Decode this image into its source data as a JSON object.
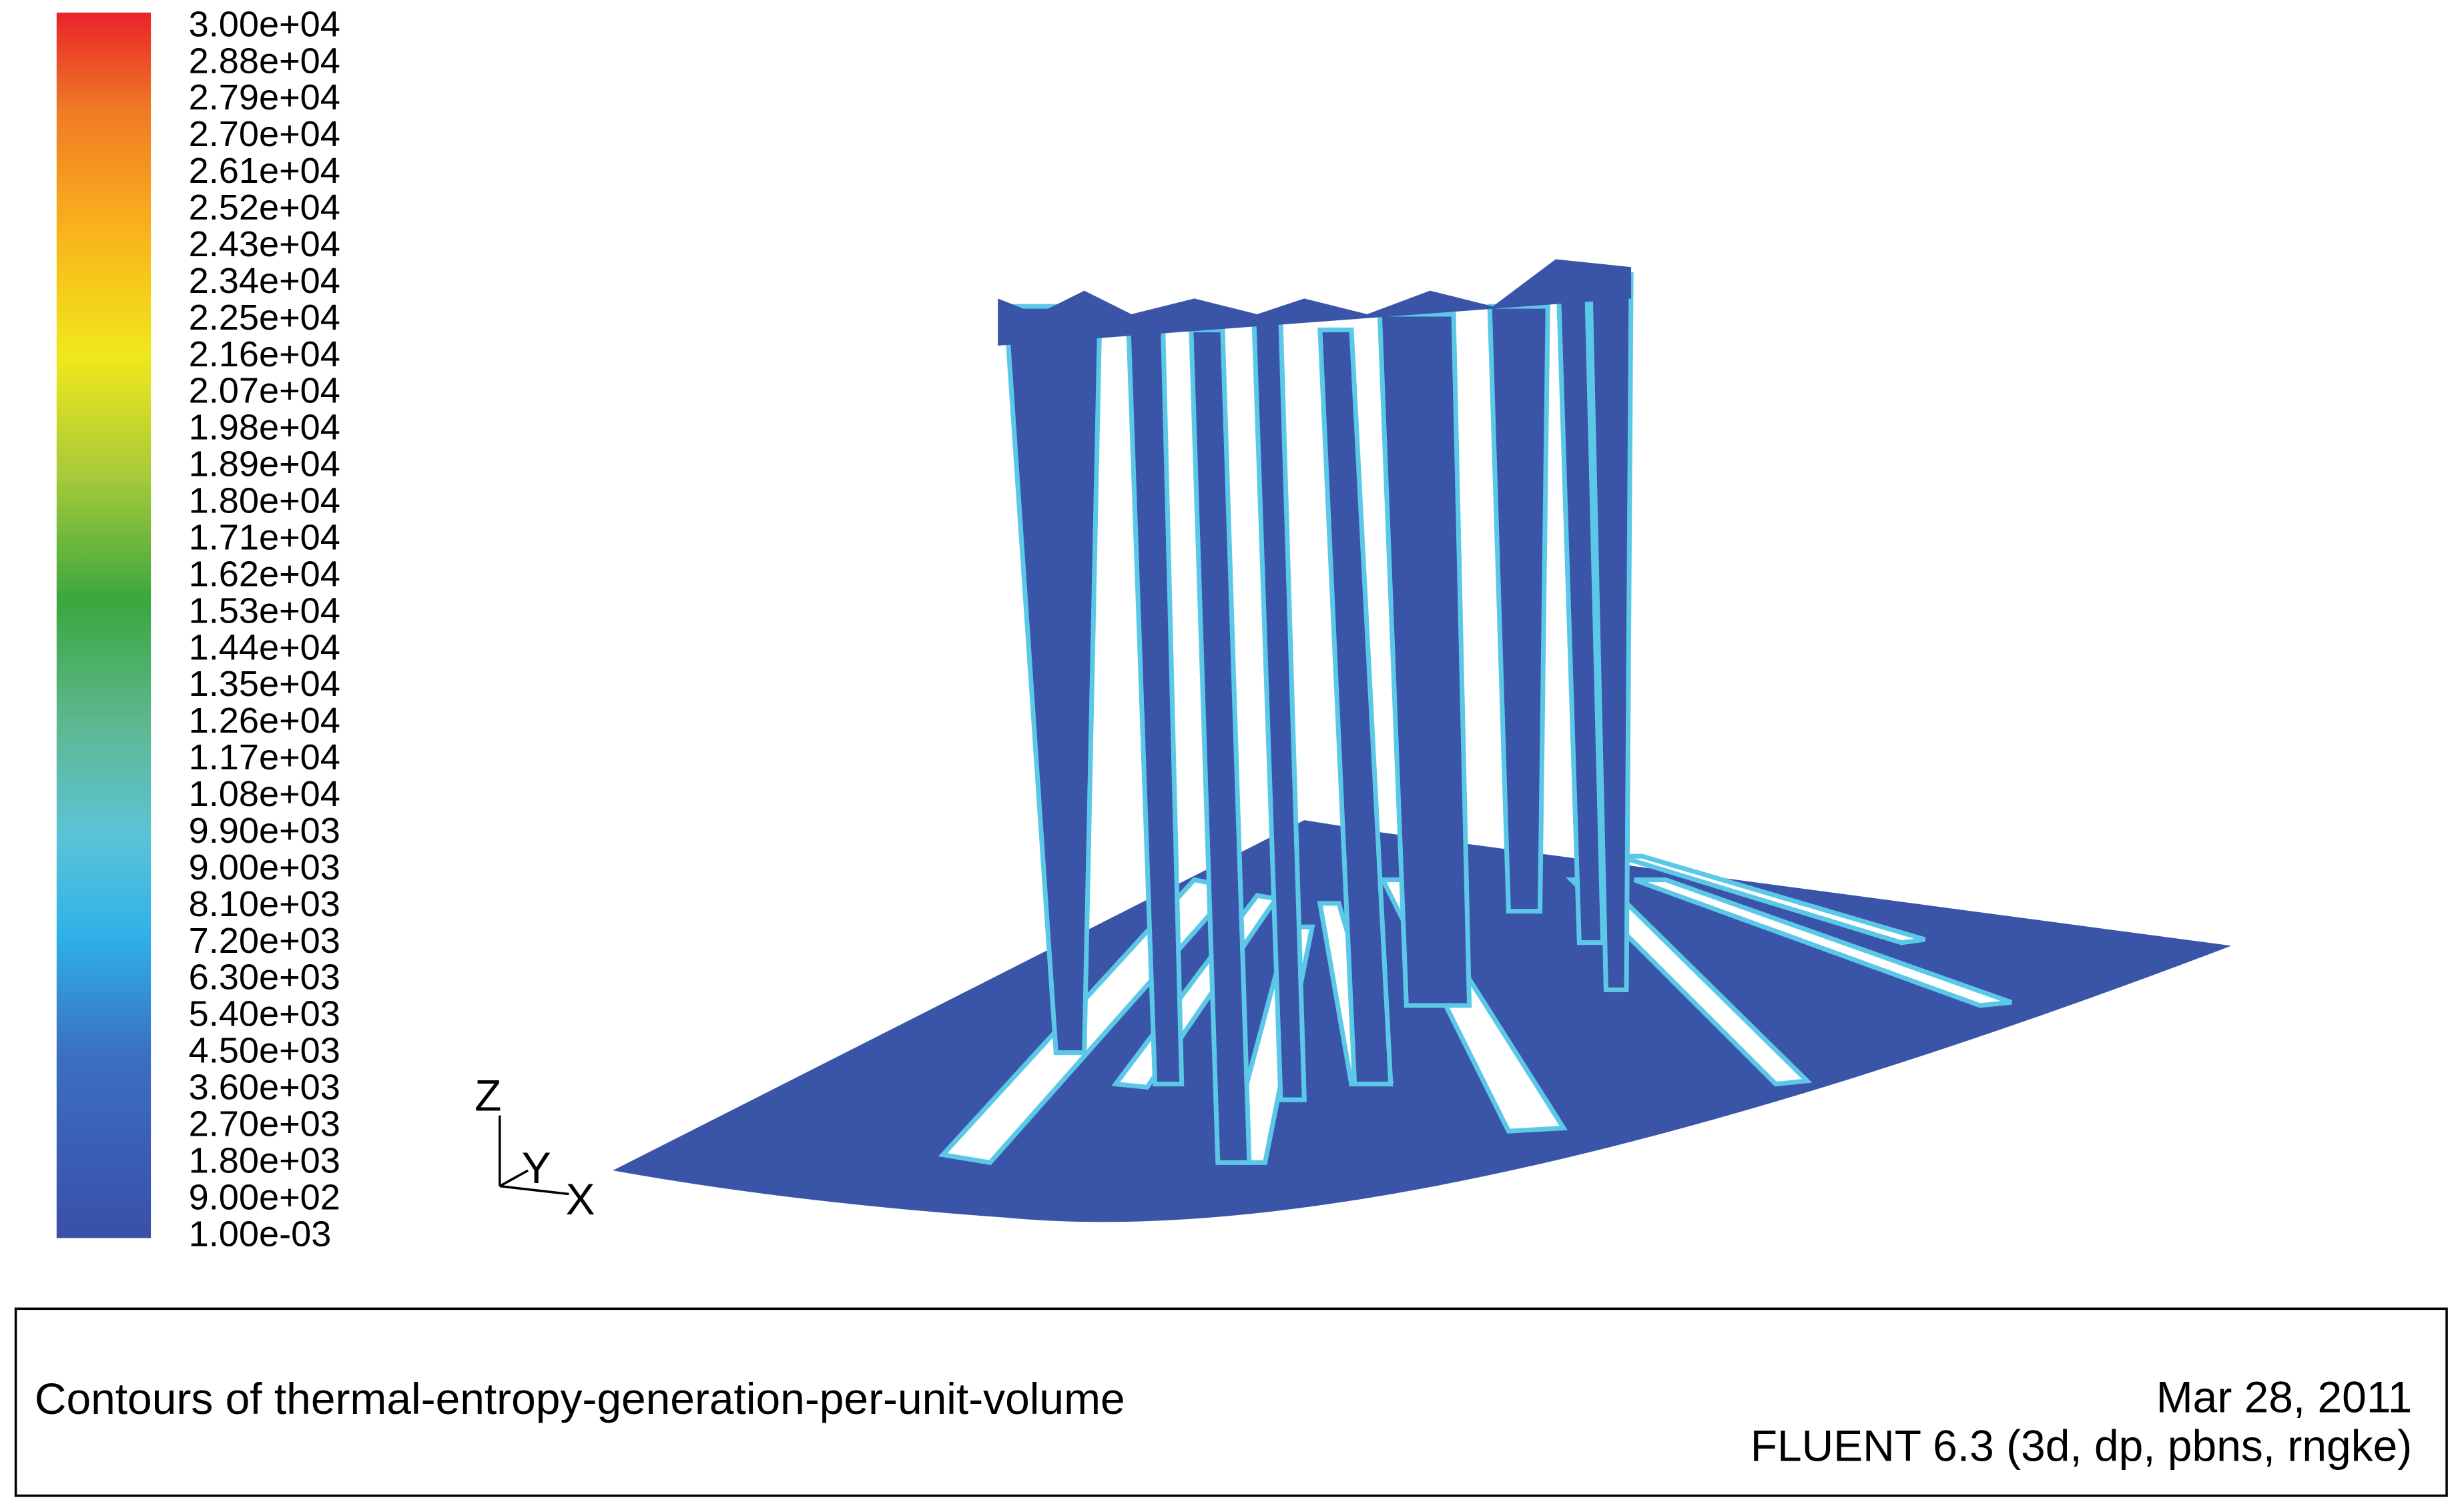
{
  "colorbar": {
    "labels": [
      "3.00e+04",
      "2.88e+04",
      "2.79e+04",
      "2.70e+04",
      "2.61e+04",
      "2.52e+04",
      "2.43e+04",
      "2.34e+04",
      "2.25e+04",
      "2.16e+04",
      "2.07e+04",
      "1.98e+04",
      "1.89e+04",
      "1.80e+04",
      "1.71e+04",
      "1.62e+04",
      "1.53e+04",
      "1.44e+04",
      "1.35e+04",
      "1.26e+04",
      "1.17e+04",
      "1.08e+04",
      "9.90e+03",
      "9.00e+03",
      "8.10e+03",
      "7.20e+03",
      "6.30e+03",
      "5.40e+03",
      "4.50e+03",
      "3.60e+03",
      "2.70e+03",
      "1.80e+03",
      "9.00e+02",
      "1.00e-03"
    ]
  },
  "triad": {
    "z": "Z",
    "y": "Y",
    "x": "X"
  },
  "footer": {
    "title": "Contours of thermal-entropy-generation-per-unit-volume",
    "date": "Mar 28, 2011",
    "solver": "FLUENT 6.3 (3d, dp, pbns, rngke)"
  }
}
